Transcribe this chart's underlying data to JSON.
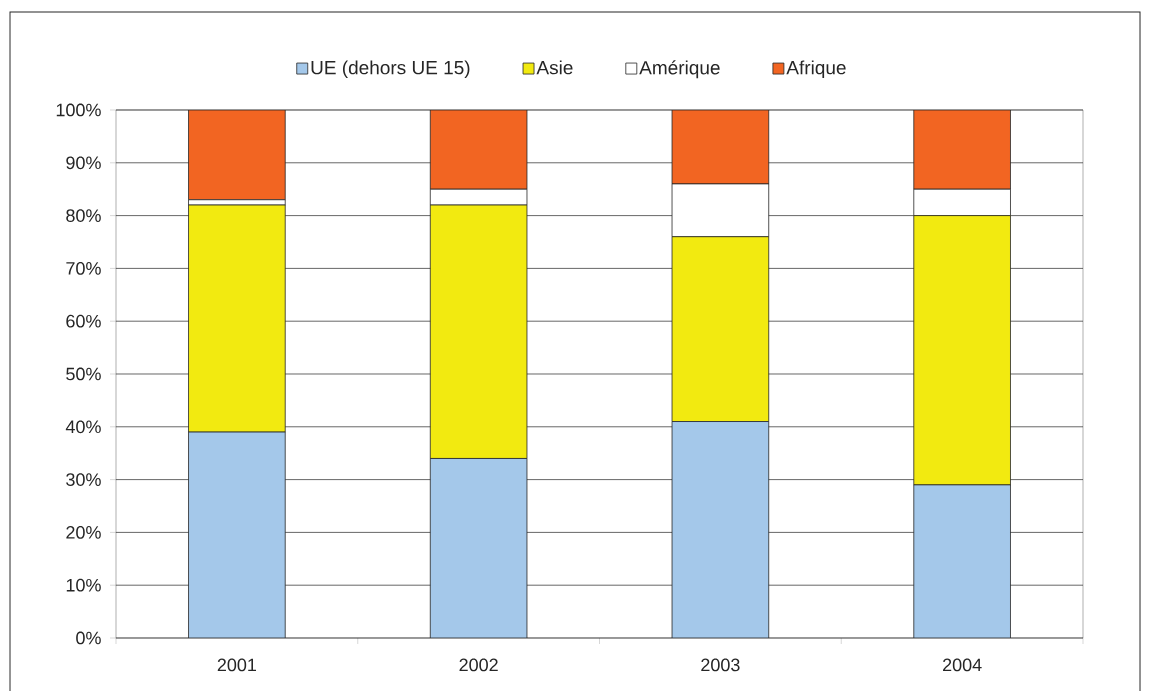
{
  "chart_data": {
    "type": "bar",
    "stacked": true,
    "categories": [
      "2001",
      "2002",
      "2003",
      "2004"
    ],
    "series": [
      {
        "name": "UE (dehors UE 15)",
        "color": "#a4c8ea",
        "values": [
          39,
          34,
          41,
          29
        ]
      },
      {
        "name": "Asie",
        "color": "#f2ea10",
        "values": [
          43,
          48,
          35,
          51
        ]
      },
      {
        "name": "Amérique",
        "color": "#ffffff",
        "values": [
          1,
          3,
          10,
          5
        ]
      },
      {
        "name": "Afrique",
        "color": "#f26522",
        "values": [
          17,
          15,
          14,
          15
        ]
      }
    ],
    "ylim": [
      0,
      100
    ],
    "yticks": [
      {
        "value": 0,
        "label": "0%"
      },
      {
        "value": 10,
        "label": "10%"
      },
      {
        "value": 20,
        "label": "20%"
      },
      {
        "value": 30,
        "label": "30%"
      },
      {
        "value": 40,
        "label": "40%"
      },
      {
        "value": 50,
        "label": "50%"
      },
      {
        "value": 60,
        "label": "60%"
      },
      {
        "value": 70,
        "label": "70%"
      },
      {
        "value": 80,
        "label": "80%"
      },
      {
        "value": 90,
        "label": "90%"
      },
      {
        "value": 100,
        "label": "100%"
      }
    ],
    "grid": "y",
    "legend": "top"
  }
}
